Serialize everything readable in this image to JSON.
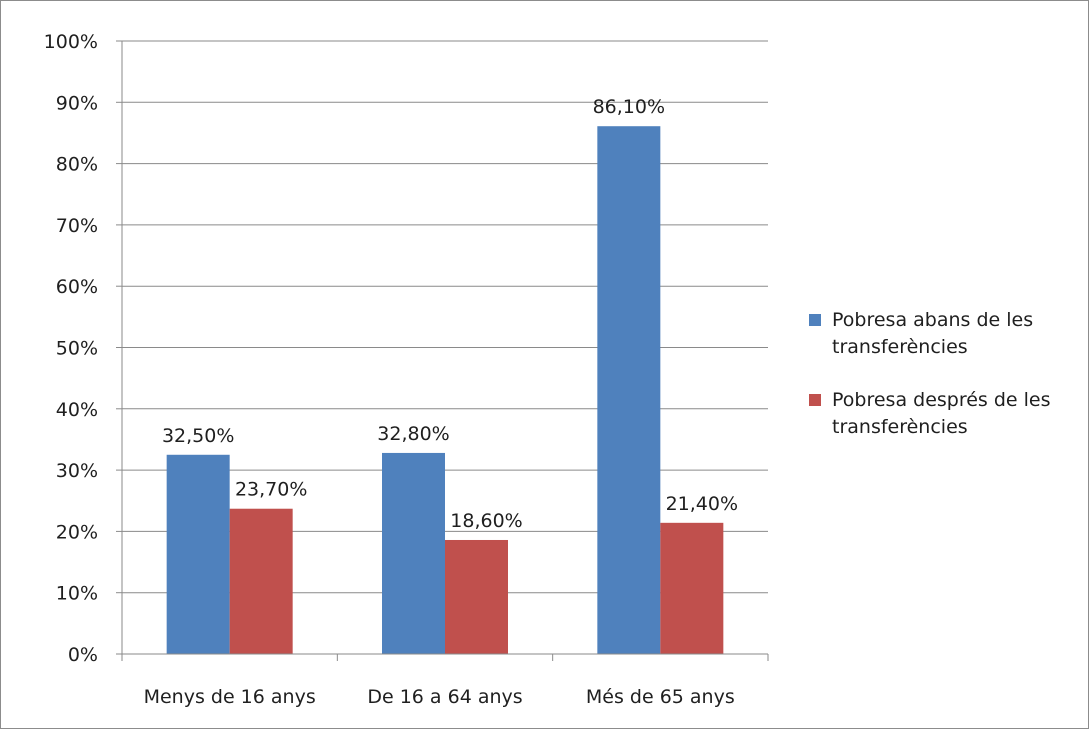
{
  "chart_data": {
    "type": "bar",
    "title": "",
    "xlabel": "",
    "ylabel": "",
    "categories": [
      "Menys de 16 anys",
      "De 16 a 64 anys",
      "Més de 65 anys"
    ],
    "series": [
      {
        "name": "Pobresa abans de les transferències",
        "color": "#4f81bd",
        "values": [
          32.5,
          32.8,
          86.1
        ],
        "labels": [
          "32,50%",
          "32,80%",
          "86,10%"
        ]
      },
      {
        "name": "Pobresa després de les transferències",
        "color": "#c0504d",
        "values": [
          23.7,
          18.6,
          21.4
        ],
        "labels": [
          "23,70%",
          "18,60%",
          "21,40%"
        ]
      }
    ],
    "ylim": [
      0,
      100
    ],
    "yticks": [
      0,
      10,
      20,
      30,
      40,
      50,
      60,
      70,
      80,
      90,
      100
    ],
    "ytick_labels": [
      "0%",
      "10%",
      "20%",
      "30%",
      "40%",
      "50%",
      "60%",
      "70%",
      "80%",
      "90%",
      "100%"
    ],
    "grid": true,
    "legend_position": "right"
  },
  "legend": {
    "items": [
      {
        "label": "Pobresa abans de les transferències",
        "color": "#4f81bd"
      },
      {
        "label": "Pobresa després de les transferències",
        "color": "#c0504d"
      }
    ]
  }
}
